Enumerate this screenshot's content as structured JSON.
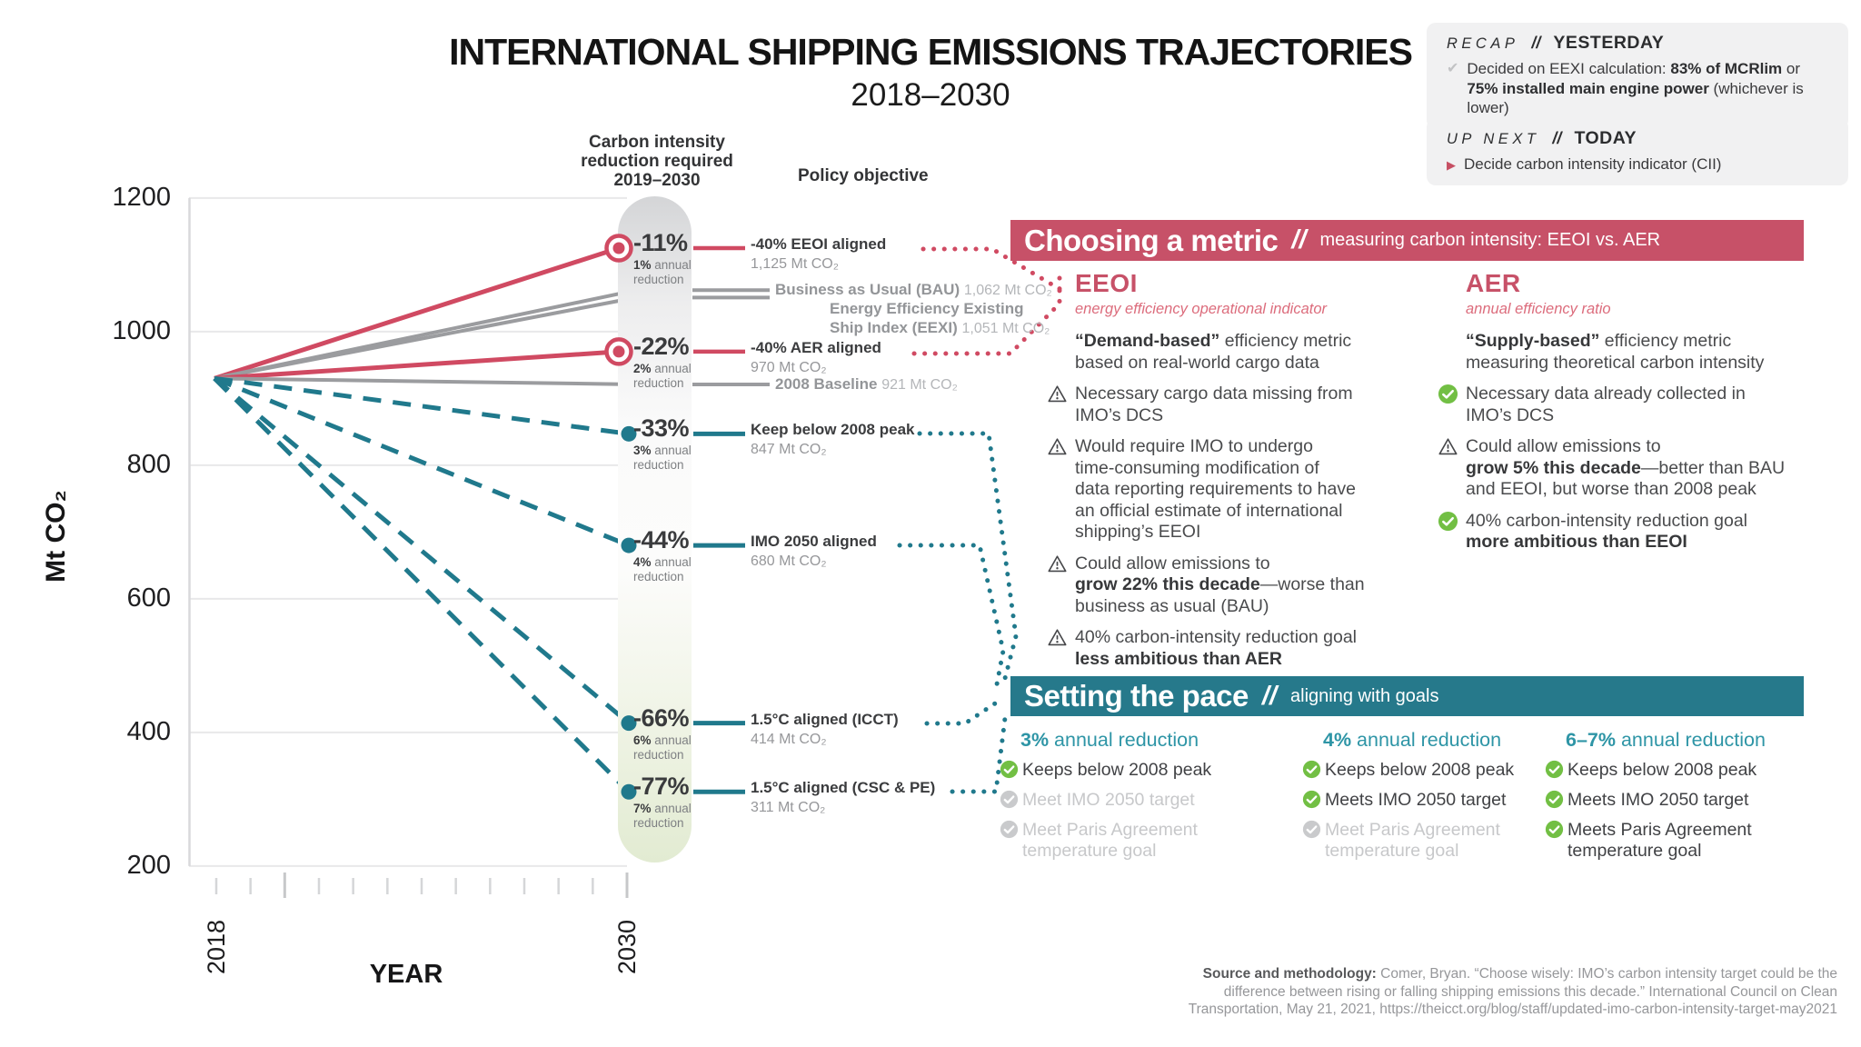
{
  "title": "INTERNATIONAL SHIPPING EMISSIONS TRAJECTORIES",
  "subtitle": "2018–2030",
  "colors": {
    "pink": "#c75168",
    "pink_line": "#d04a62",
    "pink_tagline": "#dc6c7c",
    "teal": "#26798b",
    "teal_line": "#20798c",
    "teal_text": "#2e95a6",
    "green": "#72bf44",
    "gray_line": "#9b9c9f",
    "gray_icon": "#c9cacc",
    "dark": "#3b3c3e"
  },
  "icons": {
    "check_glyph": "✔",
    "play_glyph": "▶"
  },
  "recap": {
    "kicker": "RECAP",
    "slashes": "//",
    "heading": "YESTERDAY",
    "line1_pre": "Decided on EEXI calculation: ",
    "line1_bold": "83% of MCRlim",
    "line1_post": " or\n",
    "line2_bold": "75% installed main engine power",
    "line2_post": " (whichever is lower)"
  },
  "upnext": {
    "kicker": "UP NEXT",
    "slashes": "//",
    "heading": "TODAY",
    "item": "Decide carbon intensity indicator (CII)"
  },
  "pill_header_lines": [
    "Carbon intensity",
    "reduction required",
    "2019–2030"
  ],
  "policy_header": "Policy objective",
  "chart_data": {
    "type": "line",
    "title": "INTERNATIONAL SHIPPING EMISSIONS TRAJECTORIES",
    "subtitle": "2018–2030",
    "xlabel": "YEAR",
    "ylabel": "Mt CO₂",
    "ylim": [
      200,
      1200
    ],
    "yticks": [
      1200,
      1000,
      800,
      600,
      400,
      200
    ],
    "x_ticks_years": [
      2018,
      2019,
      2020,
      2021,
      2022,
      2023,
      2024,
      2025,
      2026,
      2027,
      2028,
      2029,
      2030
    ],
    "x_tick_labels": [
      "2018",
      "2030"
    ],
    "start_year": 2018,
    "start_value_mt": 930,
    "end_year": 2030,
    "series": [
      {
        "name": "-40% EEOI aligned",
        "end_value": 1125,
        "value_label": "1,125 Mt CO₂",
        "color": "pink",
        "style": "solid",
        "marker": "ring",
        "reduction": "-11%",
        "annual_bold": "1%",
        "annual_rest": "annual reduction"
      },
      {
        "name": "Business as Usual (BAU)",
        "end_value": 1062,
        "value_label": "1,062 Mt CO₂",
        "color": "gray",
        "style": "solid"
      },
      {
        "name": "Energy Efficiency Existing Ship Index (EEXI)",
        "name_lines": [
          "Energy Efficiency Existing",
          "Ship Index (EEXI)"
        ],
        "end_value": 1051,
        "value_label": "1,051 Mt CO₂",
        "color": "gray",
        "style": "solid"
      },
      {
        "name": "-40% AER aligned",
        "end_value": 970,
        "value_label": "970 Mt CO₂",
        "color": "pink",
        "style": "solid",
        "marker": "ring",
        "reduction": "-22%",
        "annual_bold": "2%",
        "annual_rest": "annual reduction"
      },
      {
        "name": "2008 Baseline",
        "end_value": 921,
        "value_label": "921 Mt CO₂",
        "color": "gray",
        "style": "solid"
      },
      {
        "name": "Keep below 2008 peak",
        "end_value": 847,
        "value_label": "847 Mt CO₂",
        "color": "teal",
        "style": "dashed",
        "marker": "dot",
        "reduction": "-33%",
        "annual_bold": "3%",
        "annual_rest": "annual reduction"
      },
      {
        "name": "IMO 2050 aligned",
        "end_value": 680,
        "value_label": "680 Mt CO₂",
        "color": "teal",
        "style": "dashed",
        "marker": "dot",
        "reduction": "-44%",
        "annual_bold": "4%",
        "annual_rest": "annual reduction"
      },
      {
        "name": "1.5°C aligned (ICCT)",
        "end_value": 414,
        "value_label": "414 Mt CO₂",
        "color": "teal",
        "style": "dashed",
        "marker": "dot",
        "reduction": "-66%",
        "annual_bold": "6%",
        "annual_rest": "annual reduction"
      },
      {
        "name": "1.5°C aligned (CSC & PE)",
        "end_value": 311,
        "value_label": "311 Mt CO₂",
        "color": "teal",
        "style": "dashed",
        "marker": "dot",
        "reduction": "-77%",
        "annual_bold": "7%",
        "annual_rest": "annual reduction"
      }
    ]
  },
  "choosing": {
    "banner_title": "Choosing a metric",
    "slashes": "//",
    "banner_sub": "measuring carbon intensity: EEOI vs. AER",
    "columns": [
      {
        "heading": "EEOI",
        "tagline": "energy efficiency operational indicator",
        "bullets": [
          {
            "icon": "none",
            "parts": [
              [
                "b",
                "“Demand-based”"
              ],
              [
                "n",
                " efficiency metric\nbased on real-world cargo data"
              ]
            ]
          },
          {
            "icon": "warn",
            "parts": [
              [
                "n",
                "Necessary cargo data missing from\nIMO’s DCS"
              ]
            ]
          },
          {
            "icon": "warn",
            "parts": [
              [
                "n",
                "Would require IMO to undergo\ntime-consuming modification of\ndata reporting requirements to have\nan official estimate of international\nshipping’s EEOI"
              ]
            ]
          },
          {
            "icon": "warn",
            "parts": [
              [
                "n",
                "Could allow emissions to\n"
              ],
              [
                "b",
                "grow 22% this decade"
              ],
              [
                "n",
                "—worse than\nbusiness as usual (BAU)"
              ]
            ]
          },
          {
            "icon": "warn",
            "parts": [
              [
                "n",
                "40% carbon-intensity reduction goal\n"
              ],
              [
                "b",
                "less ambitious than AER"
              ]
            ]
          }
        ]
      },
      {
        "heading": "AER",
        "tagline": "annual efficiency ratio",
        "bullets": [
          {
            "icon": "none",
            "parts": [
              [
                "b",
                "“Supply-based”"
              ],
              [
                "n",
                " efficiency metric\nmeasuring theoretical carbon intensity"
              ]
            ]
          },
          {
            "icon": "check",
            "parts": [
              [
                "n",
                "Necessary data already collected in\nIMO’s DCS"
              ]
            ]
          },
          {
            "icon": "warn",
            "parts": [
              [
                "n",
                "Could allow emissions to\n"
              ],
              [
                "b",
                "grow 5% this decade"
              ],
              [
                "n",
                "—better than BAU\nand EEOI, but worse than 2008 peak"
              ]
            ]
          },
          {
            "icon": "check",
            "parts": [
              [
                "n",
                "40%  carbon-intensity reduction goal\n"
              ],
              [
                "b",
                "more ambitious than EEOI"
              ]
            ]
          }
        ]
      }
    ]
  },
  "pace": {
    "banner_title": "Setting the pace",
    "slashes": "//",
    "banner_sub": "aligning with goals",
    "columns": [
      {
        "rate_bold": "3%",
        "rate_rest": " annual reduction",
        "items": [
          {
            "state": "met",
            "text": "Keeps below 2008 peak"
          },
          {
            "state": "unmet",
            "text": "Meet IMO 2050 target"
          },
          {
            "state": "unmet",
            "text": "Meet Paris Agreement\ntemperature goal"
          }
        ]
      },
      {
        "rate_bold": "4%",
        "rate_rest": " annual reduction",
        "items": [
          {
            "state": "met",
            "text": "Keeps below 2008 peak"
          },
          {
            "state": "met",
            "text": "Meets IMO 2050 target"
          },
          {
            "state": "unmet",
            "text": "Meet Paris Agreement\ntemperature goal"
          }
        ]
      },
      {
        "rate_bold": "6–7%",
        "rate_rest": " annual reduction",
        "items": [
          {
            "state": "met",
            "text": "Keeps below 2008 peak"
          },
          {
            "state": "met",
            "text": "Meets IMO 2050 target"
          },
          {
            "state": "met",
            "text": "Meets Paris Agreement\ntemperature goal"
          }
        ]
      }
    ]
  },
  "source": {
    "label": "Source and methodology:",
    "text": " Comer, Bryan. “Choose wisely: IMO’s carbon intensity target could be the\ndifference between rising or falling shipping emissions this decade.” International Council on Clean\nTransportation, May 21, 2021, https://theicct.org/blog/staff/updated-imo-carbon-intensity-target-may2021"
  }
}
